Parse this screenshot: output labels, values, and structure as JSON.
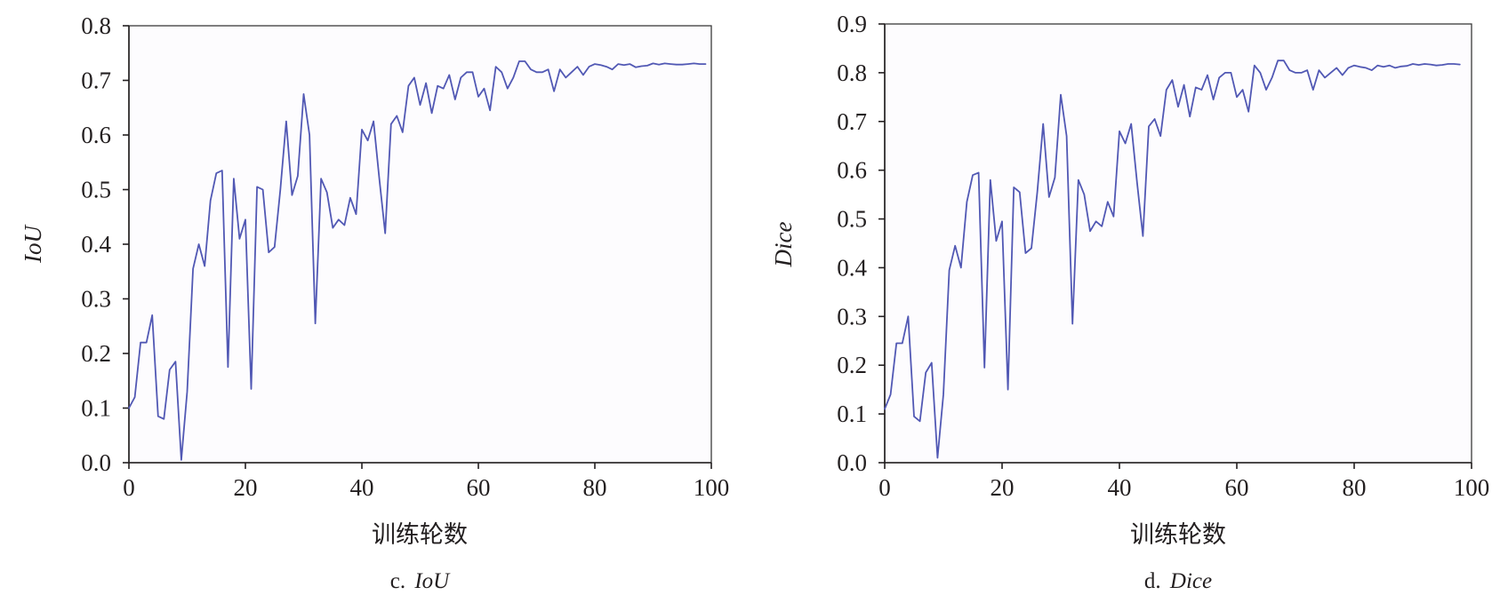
{
  "figure": {
    "panels": [
      {
        "caption_prefix": "c.",
        "caption_name": "IoU",
        "xlabel": "训练轮数",
        "ylabel": "IoU"
      },
      {
        "caption_prefix": "d.",
        "caption_name": "Dice",
        "xlabel": "训练轮数",
        "ylabel": "Dice"
      }
    ]
  },
  "chart_data": [
    {
      "type": "line",
      "title": "",
      "xlabel": "训练轮数",
      "ylabel": "IoU",
      "xlim": [
        0,
        100
      ],
      "ylim": [
        0.0,
        0.8
      ],
      "xticks": [
        0,
        20,
        40,
        60,
        80,
        100
      ],
      "yticks": [
        0.0,
        0.1,
        0.2,
        0.3,
        0.4,
        0.5,
        0.6,
        0.7,
        0.8
      ],
      "xtick_labels": [
        "0",
        "20",
        "40",
        "60",
        "80",
        "100"
      ],
      "ytick_labels": [
        "0.0",
        "0.1",
        "0.2",
        "0.3",
        "0.4",
        "0.5",
        "0.6",
        "0.7",
        "0.8"
      ],
      "grid": false,
      "line_color": "#5158b4",
      "series": [
        {
          "x": [
            0,
            1,
            2,
            3,
            4,
            5,
            6,
            7,
            8,
            9,
            10,
            11,
            12,
            13,
            14,
            15,
            16,
            17,
            18,
            19,
            20,
            21,
            22,
            23,
            24,
            25,
            26,
            27,
            28,
            29,
            30,
            31,
            32,
            33,
            34,
            35,
            36,
            37,
            38,
            39,
            40,
            41,
            42,
            43,
            44,
            45,
            46,
            47,
            48,
            49,
            50,
            51,
            52,
            53,
            54,
            55,
            56,
            57,
            58,
            59,
            60,
            61,
            62,
            63,
            64,
            65,
            66,
            67,
            68,
            69,
            70,
            71,
            72,
            73,
            74,
            75,
            76,
            77,
            78,
            79,
            80,
            81,
            82,
            83,
            84,
            85,
            86,
            87,
            88,
            89,
            90,
            91,
            92,
            93,
            94,
            95,
            96,
            97,
            98,
            99
          ],
          "y": [
            0.1,
            0.12,
            0.22,
            0.22,
            0.27,
            0.085,
            0.08,
            0.17,
            0.185,
            0.005,
            0.13,
            0.355,
            0.4,
            0.36,
            0.48,
            0.53,
            0.535,
            0.175,
            0.52,
            0.41,
            0.445,
            0.135,
            0.505,
            0.5,
            0.385,
            0.395,
            0.5,
            0.625,
            0.49,
            0.525,
            0.675,
            0.6,
            0.255,
            0.52,
            0.495,
            0.43,
            0.445,
            0.435,
            0.485,
            0.455,
            0.61,
            0.59,
            0.625,
            0.52,
            0.42,
            0.62,
            0.635,
            0.605,
            0.69,
            0.705,
            0.655,
            0.695,
            0.64,
            0.69,
            0.685,
            0.71,
            0.665,
            0.705,
            0.715,
            0.715,
            0.67,
            0.685,
            0.645,
            0.725,
            0.715,
            0.685,
            0.705,
            0.735,
            0.735,
            0.72,
            0.715,
            0.715,
            0.72,
            0.68,
            0.72,
            0.705,
            0.715,
            0.725,
            0.71,
            0.725,
            0.73,
            0.728,
            0.725,
            0.72,
            0.73,
            0.728,
            0.73,
            0.724,
            0.726,
            0.727,
            0.731,
            0.729,
            0.731,
            0.73,
            0.729,
            0.729,
            0.73,
            0.731,
            0.73,
            0.73
          ]
        }
      ]
    },
    {
      "type": "line",
      "title": "",
      "xlabel": "训练轮数",
      "ylabel": "Dice",
      "xlim": [
        0,
        100
      ],
      "ylim": [
        0.0,
        0.9
      ],
      "xticks": [
        0,
        20,
        40,
        60,
        80,
        100
      ],
      "yticks": [
        0.0,
        0.1,
        0.2,
        0.3,
        0.4,
        0.5,
        0.6,
        0.7,
        0.8,
        0.9
      ],
      "xtick_labels": [
        "0",
        "20",
        "40",
        "60",
        "80",
        "100"
      ],
      "ytick_labels": [
        "0.0",
        "0.1",
        "0.2",
        "0.3",
        "0.4",
        "0.5",
        "0.6",
        "0.7",
        "0.8",
        "0.9"
      ],
      "grid": false,
      "line_color": "#5158b4",
      "series": [
        {
          "x": [
            0,
            1,
            2,
            3,
            4,
            5,
            6,
            7,
            8,
            9,
            10,
            11,
            12,
            13,
            14,
            15,
            16,
            17,
            18,
            19,
            20,
            21,
            22,
            23,
            24,
            25,
            26,
            27,
            28,
            29,
            30,
            31,
            32,
            33,
            34,
            35,
            36,
            37,
            38,
            39,
            40,
            41,
            42,
            43,
            44,
            45,
            46,
            47,
            48,
            49,
            50,
            51,
            52,
            53,
            54,
            55,
            56,
            57,
            58,
            59,
            60,
            61,
            62,
            63,
            64,
            65,
            66,
            67,
            68,
            69,
            70,
            71,
            72,
            73,
            74,
            75,
            76,
            77,
            78,
            79,
            80,
            81,
            82,
            83,
            84,
            85,
            86,
            87,
            88,
            89,
            90,
            91,
            92,
            93,
            94,
            95,
            96,
            97,
            98
          ],
          "y": [
            0.11,
            0.14,
            0.245,
            0.245,
            0.3,
            0.095,
            0.085,
            0.185,
            0.205,
            0.01,
            0.14,
            0.395,
            0.445,
            0.4,
            0.535,
            0.59,
            0.595,
            0.195,
            0.58,
            0.455,
            0.495,
            0.15,
            0.565,
            0.555,
            0.43,
            0.44,
            0.555,
            0.695,
            0.545,
            0.585,
            0.755,
            0.67,
            0.285,
            0.58,
            0.55,
            0.475,
            0.495,
            0.485,
            0.535,
            0.505,
            0.68,
            0.655,
            0.695,
            0.575,
            0.465,
            0.69,
            0.705,
            0.67,
            0.765,
            0.785,
            0.73,
            0.775,
            0.71,
            0.77,
            0.765,
            0.795,
            0.745,
            0.79,
            0.8,
            0.8,
            0.75,
            0.765,
            0.72,
            0.815,
            0.8,
            0.765,
            0.79,
            0.825,
            0.825,
            0.805,
            0.8,
            0.8,
            0.805,
            0.765,
            0.805,
            0.79,
            0.8,
            0.81,
            0.795,
            0.81,
            0.815,
            0.812,
            0.81,
            0.805,
            0.815,
            0.812,
            0.815,
            0.81,
            0.813,
            0.814,
            0.818,
            0.816,
            0.818,
            0.817,
            0.815,
            0.816,
            0.818,
            0.818,
            0.817
          ]
        }
      ]
    }
  ]
}
